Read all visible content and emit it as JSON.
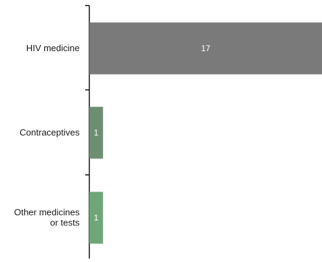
{
  "chart_data": {
    "type": "bar",
    "orientation": "horizontal",
    "categories": [
      "HIV medicine",
      "Contraceptives",
      "Other medicines or tests"
    ],
    "category_lines": [
      [
        "HIV medicine"
      ],
      [
        "Contraceptives"
      ],
      [
        "Other medicines",
        "or tests"
      ]
    ],
    "values": [
      17,
      1,
      1
    ],
    "data_labels": [
      "17",
      "1",
      "1"
    ],
    "bar_colors": [
      "#7a7a7a",
      "#6e8e72",
      "#6fa679"
    ],
    "xlim": [
      0,
      17
    ],
    "grid": false,
    "legend": "none",
    "title": "",
    "xlabel": "",
    "ylabel": ""
  }
}
